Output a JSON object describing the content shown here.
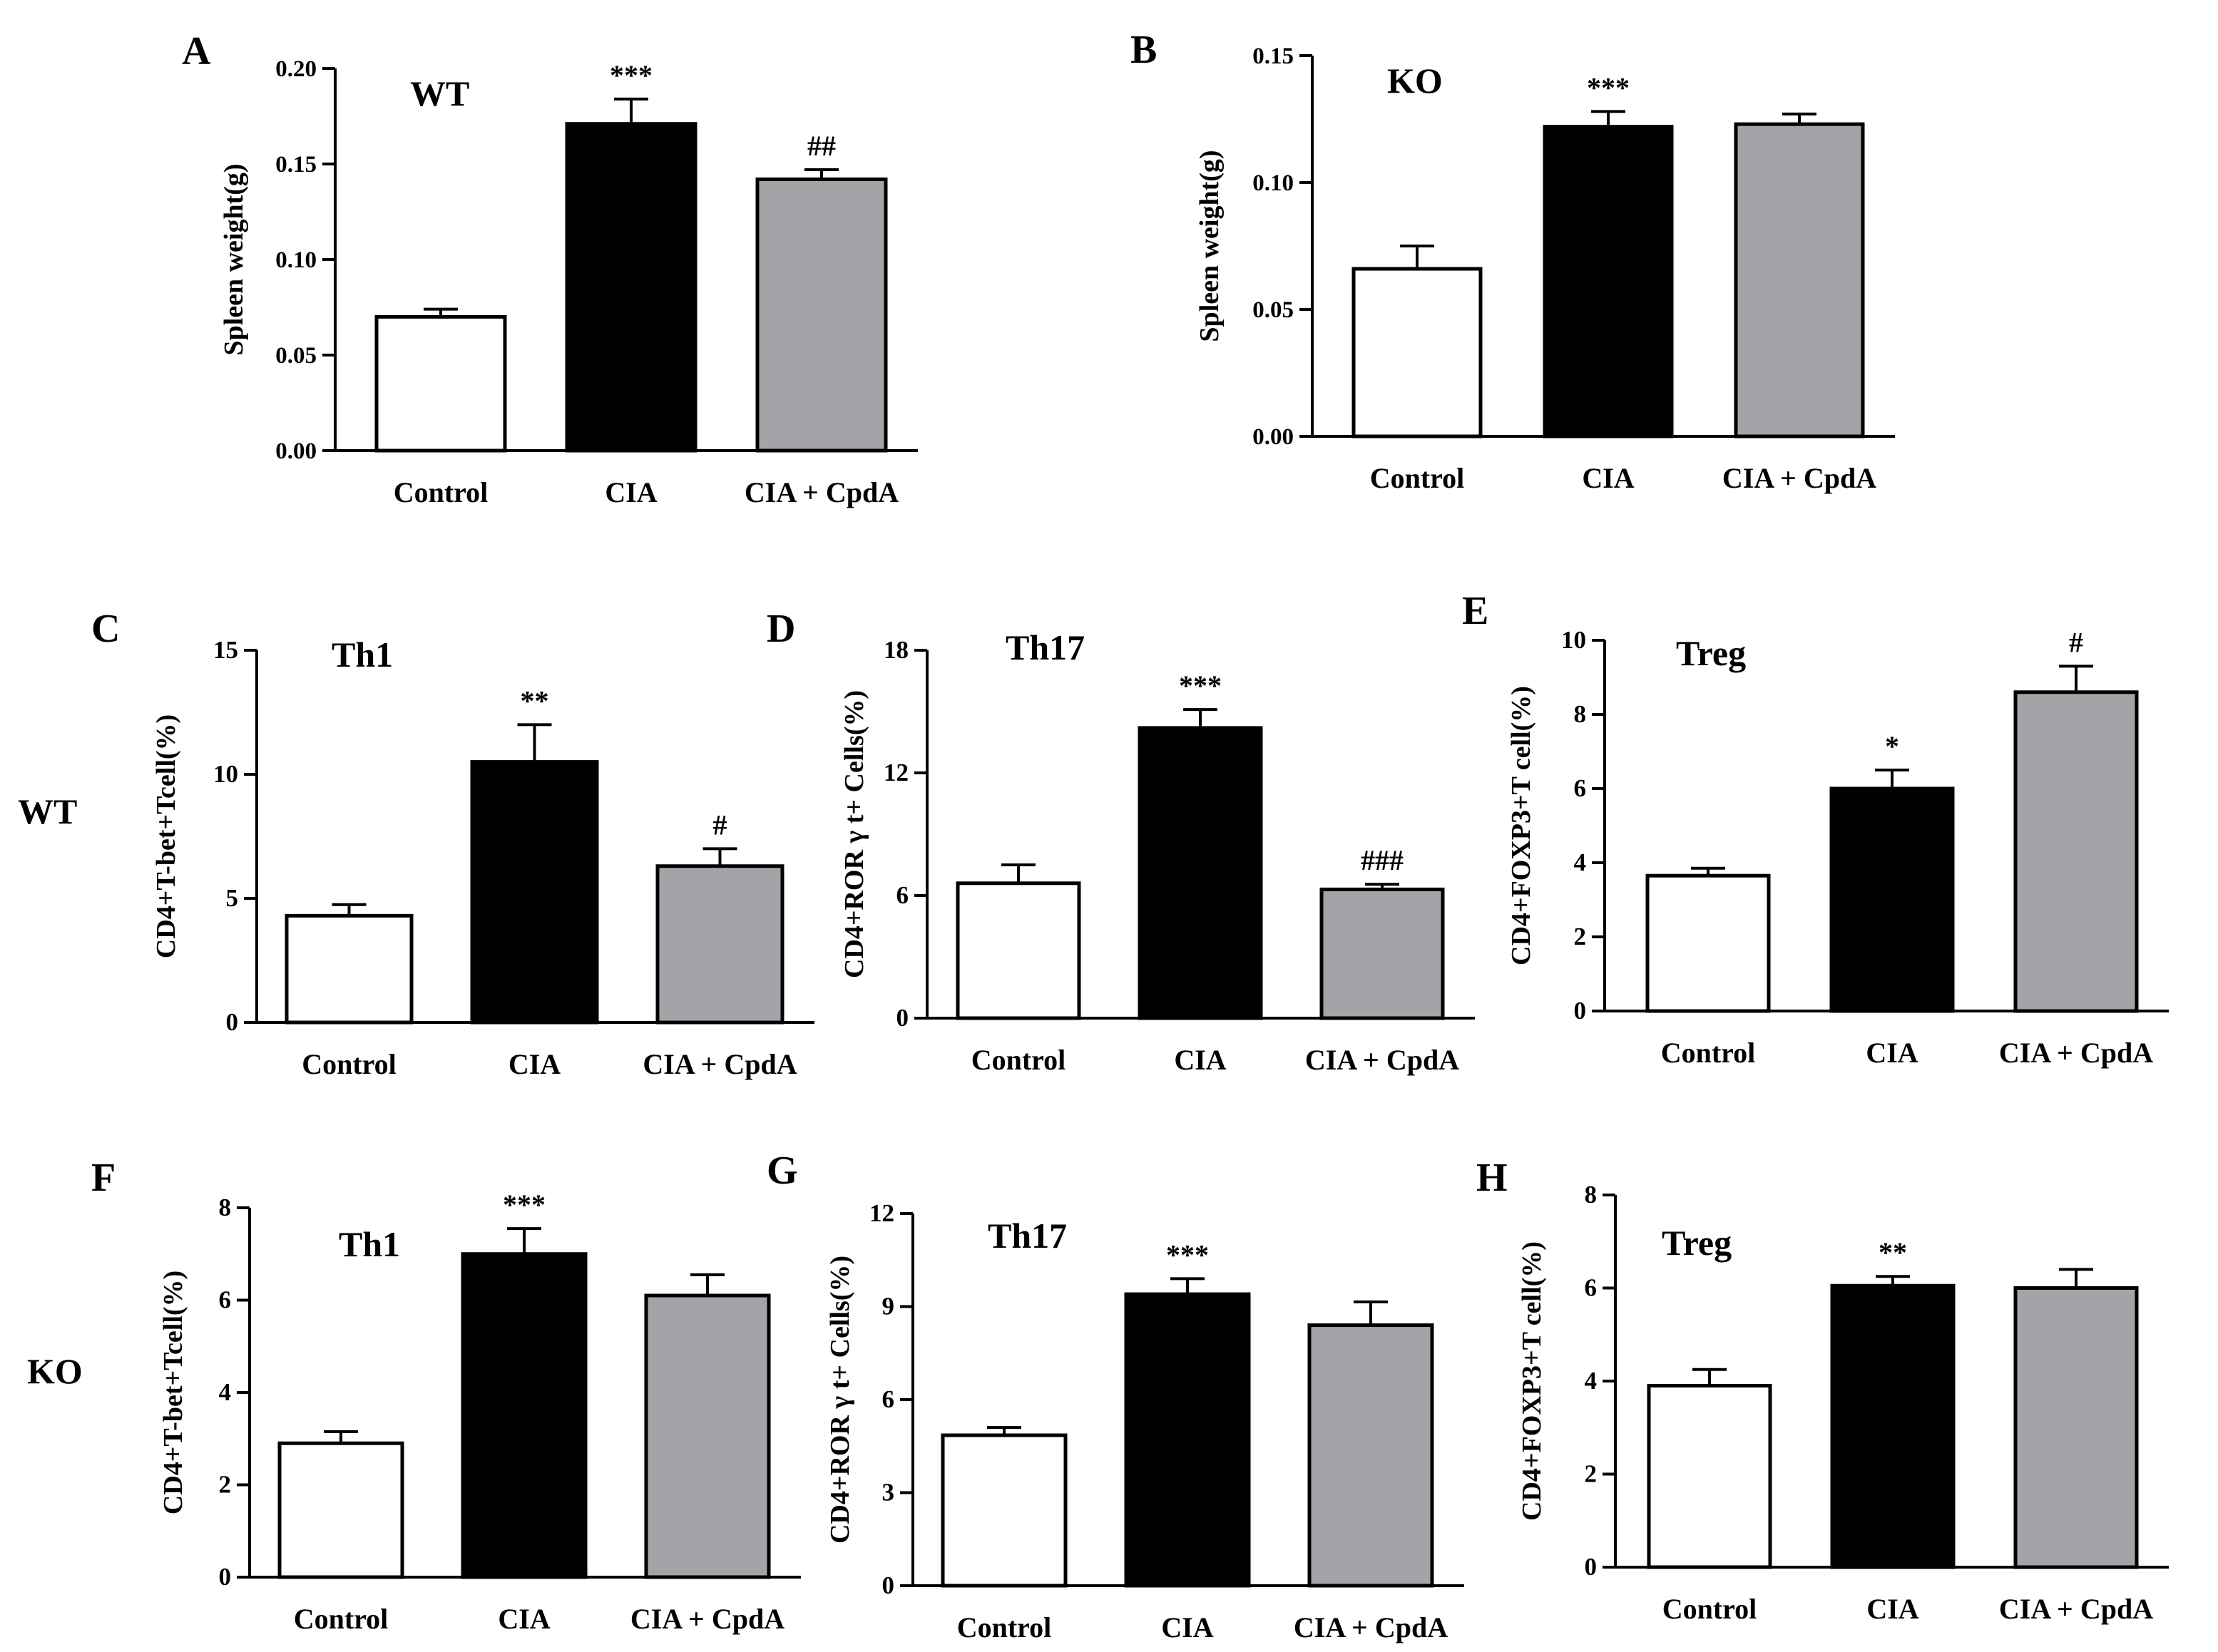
{
  "row_labels": [
    "WT",
    "KO"
  ],
  "colors": {
    "control": "#ffffff",
    "cia": "#000000",
    "cia_cpda": "#a4a4a8",
    "axis": "#000000"
  },
  "chart_data": [
    {
      "panel": "A",
      "type": "bar",
      "title": "WT",
      "ylabel": "Spleen weight(g)",
      "categories": [
        "Control",
        "CIA",
        "CIA + CpdA"
      ],
      "values": [
        0.07,
        0.171,
        0.142
      ],
      "errors": [
        0.004,
        0.013,
        0.005
      ],
      "annotations": [
        "",
        "***",
        "##"
      ],
      "ylim": [
        0,
        0.2
      ],
      "yticks": [
        "0.00",
        "0.05",
        "0.10",
        "0.15",
        "0.20"
      ]
    },
    {
      "panel": "B",
      "type": "bar",
      "title": "KO",
      "ylabel": "Spleen weight(g)",
      "categories": [
        "Control",
        "CIA",
        "CIA + CpdA"
      ],
      "values": [
        0.066,
        0.122,
        0.123
      ],
      "errors": [
        0.009,
        0.006,
        0.004
      ],
      "annotations": [
        "",
        "***",
        ""
      ],
      "ylim": [
        0,
        0.15
      ],
      "yticks": [
        "0.00",
        "0.05",
        "0.10",
        "0.15"
      ]
    },
    {
      "panel": "C",
      "type": "bar",
      "title": "Th1",
      "ylabel": "CD4+T-bet+Tcell(%)",
      "categories": [
        "Control",
        "CIA",
        "CIA + CpdA"
      ],
      "values": [
        4.3,
        10.5,
        6.3
      ],
      "errors": [
        0.45,
        1.5,
        0.7
      ],
      "annotations": [
        "",
        "**",
        "#"
      ],
      "ylim": [
        0,
        15
      ],
      "yticks": [
        "0",
        "5",
        "10",
        "15"
      ]
    },
    {
      "panel": "D",
      "type": "bar",
      "title": "Th17",
      "ylabel": "CD4+ROR γ t+ Cells(%)",
      "categories": [
        "Control",
        "CIA",
        "CIA + CpdA"
      ],
      "values": [
        6.6,
        14.2,
        6.3
      ],
      "errors": [
        0.9,
        0.9,
        0.25
      ],
      "annotations": [
        "",
        "***",
        "###"
      ],
      "ylim": [
        0,
        18
      ],
      "yticks": [
        "0",
        "6",
        "12",
        "18"
      ]
    },
    {
      "panel": "E",
      "type": "bar",
      "title": "Treg",
      "ylabel": "CD4+FOXP3+T cell(%)",
      "categories": [
        "Control",
        "CIA",
        "CIA + CpdA"
      ],
      "values": [
        3.65,
        6.0,
        8.6
      ],
      "errors": [
        0.2,
        0.5,
        0.7
      ],
      "annotations": [
        "",
        "*",
        "#"
      ],
      "ylim": [
        0,
        10
      ],
      "yticks": [
        "0",
        "2",
        "4",
        "6",
        "8",
        "10"
      ]
    },
    {
      "panel": "F",
      "type": "bar",
      "title": "Th1",
      "ylabel": "CD4+T-bet+Tcell(%)",
      "categories": [
        "Control",
        "CIA",
        "CIA + CpdA"
      ],
      "values": [
        2.9,
        7.0,
        6.1
      ],
      "errors": [
        0.25,
        0.55,
        0.45
      ],
      "annotations": [
        "",
        "***",
        ""
      ],
      "ylim": [
        0,
        8
      ],
      "yticks": [
        "0",
        "2",
        "4",
        "6",
        "8"
      ]
    },
    {
      "panel": "G",
      "type": "bar",
      "title": "Th17",
      "ylabel": "CD4+ROR γ t+ Cells(%)",
      "categories": [
        "Control",
        "CIA",
        "CIA + CpdA"
      ],
      "values": [
        4.85,
        9.4,
        8.4
      ],
      "errors": [
        0.25,
        0.5,
        0.75
      ],
      "annotations": [
        "",
        "***",
        ""
      ],
      "ylim": [
        0,
        12
      ],
      "yticks": [
        "0",
        "3",
        "6",
        "9",
        "12"
      ]
    },
    {
      "panel": "H",
      "type": "bar",
      "title": "Treg",
      "ylabel": "CD4+FOXP3+T cell(%)",
      "categories": [
        "Control",
        "CIA",
        "CIA + CpdA"
      ],
      "values": [
        3.9,
        6.05,
        6.0
      ],
      "errors": [
        0.35,
        0.2,
        0.4
      ],
      "annotations": [
        "",
        "**",
        ""
      ],
      "ylim": [
        0,
        8
      ],
      "yticks": [
        "0",
        "2",
        "4",
        "6",
        "8"
      ]
    }
  ]
}
